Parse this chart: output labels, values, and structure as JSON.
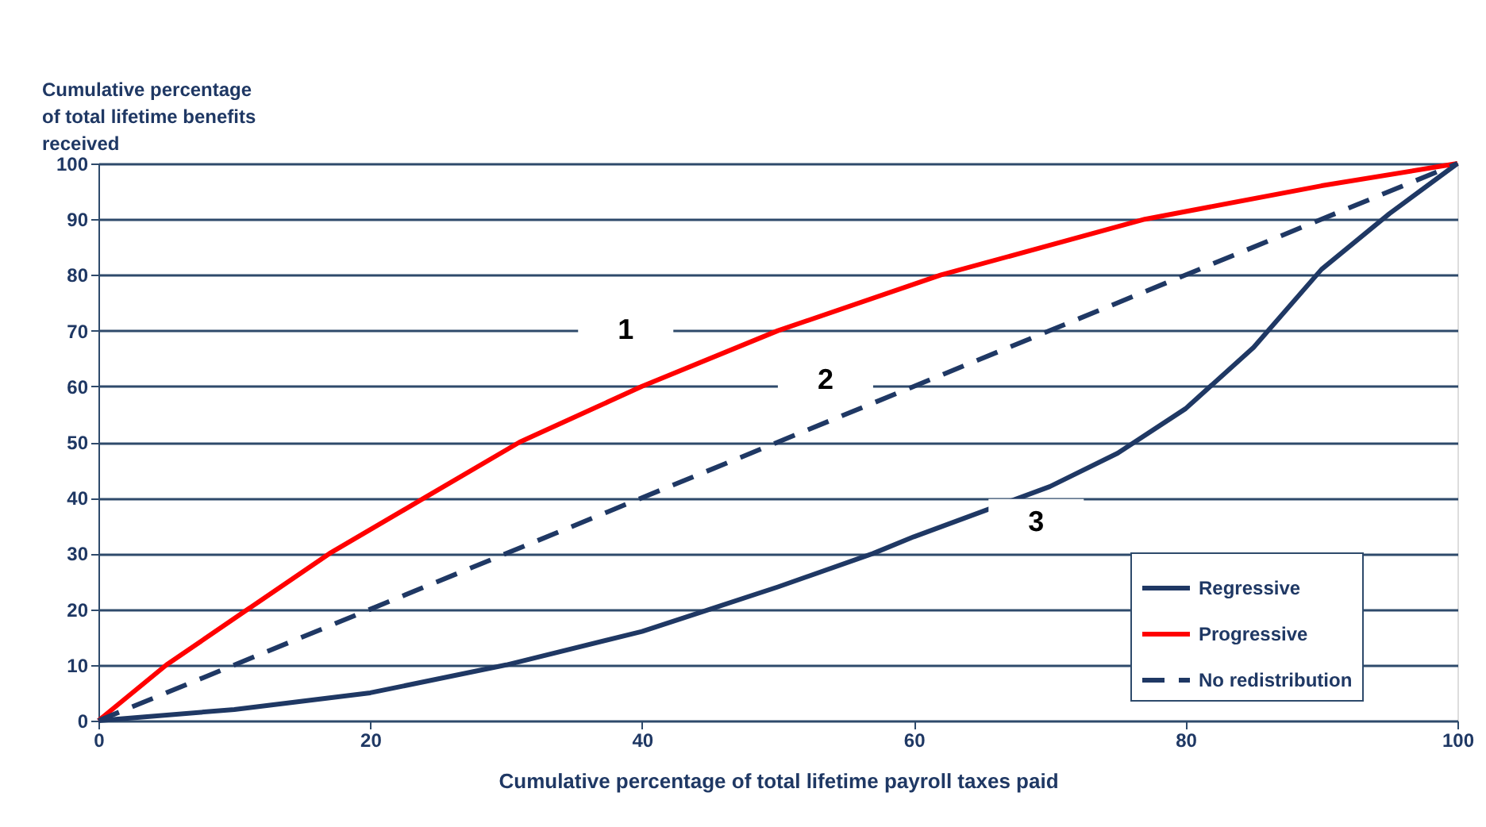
{
  "chart_data": {
    "type": "line",
    "xlabel": "Cumulative percentage of total lifetime payroll taxes paid",
    "ylabel": "Cumulative percentage\nof total lifetime benefits\nreceived",
    "series": [
      {
        "name": "Regressive",
        "color": "#1f3864",
        "line_style": "solid",
        "x": [
          0,
          10,
          20,
          30,
          40,
          45,
          50,
          57,
          60,
          70,
          75,
          80,
          85,
          90,
          95,
          100
        ],
        "values": [
          0,
          2,
          5,
          10,
          16,
          20,
          24,
          30,
          33,
          42,
          48,
          56,
          67,
          81,
          91,
          100
        ]
      },
      {
        "name": "Progressive",
        "color": "#ff0000",
        "line_style": "solid",
        "x": [
          0,
          5,
          11,
          17,
          24,
          31,
          40,
          50,
          62,
          77,
          90,
          100
        ],
        "values": [
          0,
          10,
          20,
          30,
          40,
          50,
          60,
          70,
          80,
          90,
          96,
          100
        ]
      },
      {
        "name": "No redistribution",
        "color": "#1f3864",
        "line_style": "dashed",
        "x": [
          0,
          100
        ],
        "values": [
          0,
          100
        ]
      }
    ],
    "annotations": [
      "1",
      "2",
      "3"
    ],
    "xlim": [
      0,
      100
    ],
    "xticks": [
      0,
      20,
      40,
      60,
      80,
      100
    ],
    "ylim": [
      0,
      100
    ],
    "yticks": [
      0,
      10,
      20,
      30,
      40,
      50,
      60,
      70,
      80,
      90,
      100
    ],
    "grid": "y",
    "legend": "bottom right"
  }
}
